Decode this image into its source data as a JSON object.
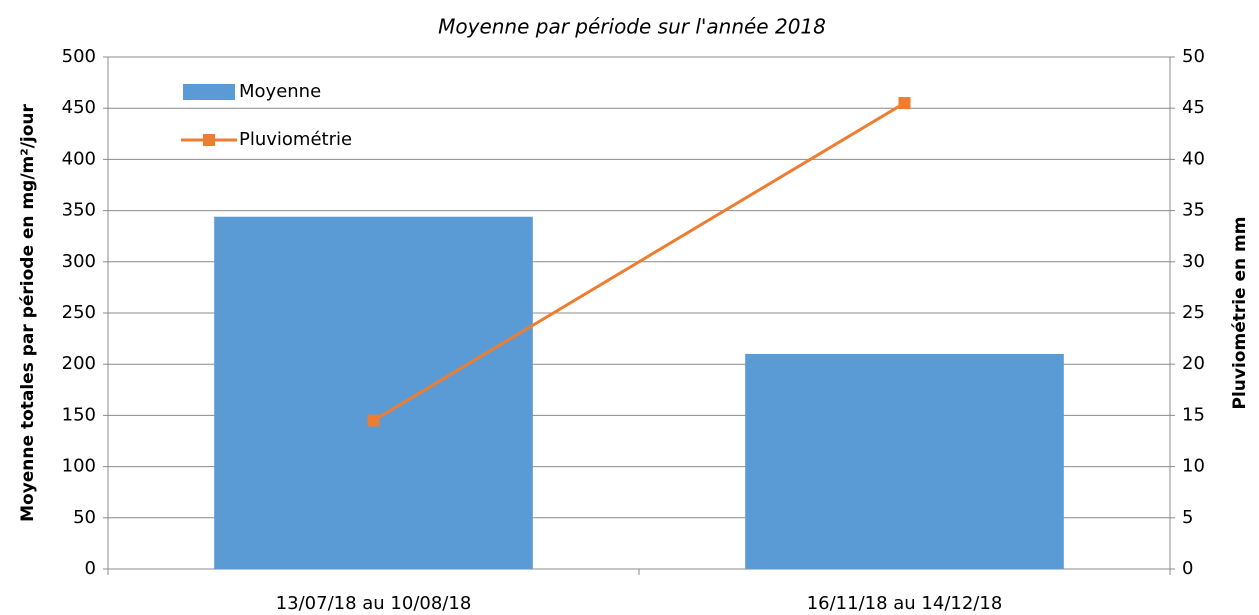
{
  "chart_data": {
    "type": "bar",
    "title": "Moyenne par période sur l'année 2018",
    "ylabel": "Moyenne totales par période en mg/m²/jour",
    "y2label": "Pluviométrie en mm",
    "categories": [
      "13/07/18 au 10/08/18",
      "16/11/18 au 14/12/18"
    ],
    "series": [
      {
        "name": "Moyenne",
        "type": "bar",
        "color": "#5b9bd5",
        "values": [
          344,
          210
        ]
      },
      {
        "name": "Pluviométrie",
        "type": "line",
        "axis": "y2",
        "color": "#ed7d31",
        "values": [
          14.5,
          45.5
        ]
      }
    ],
    "ylim": [
      0,
      500
    ],
    "yticks": [
      0,
      50,
      100,
      150,
      200,
      250,
      300,
      350,
      400,
      450,
      500
    ],
    "y2lim": [
      0,
      50
    ],
    "y2ticks": [
      0,
      5,
      10,
      15,
      20,
      25,
      30,
      35,
      40,
      45,
      50
    ],
    "grid": true,
    "legend": "upper-left"
  }
}
